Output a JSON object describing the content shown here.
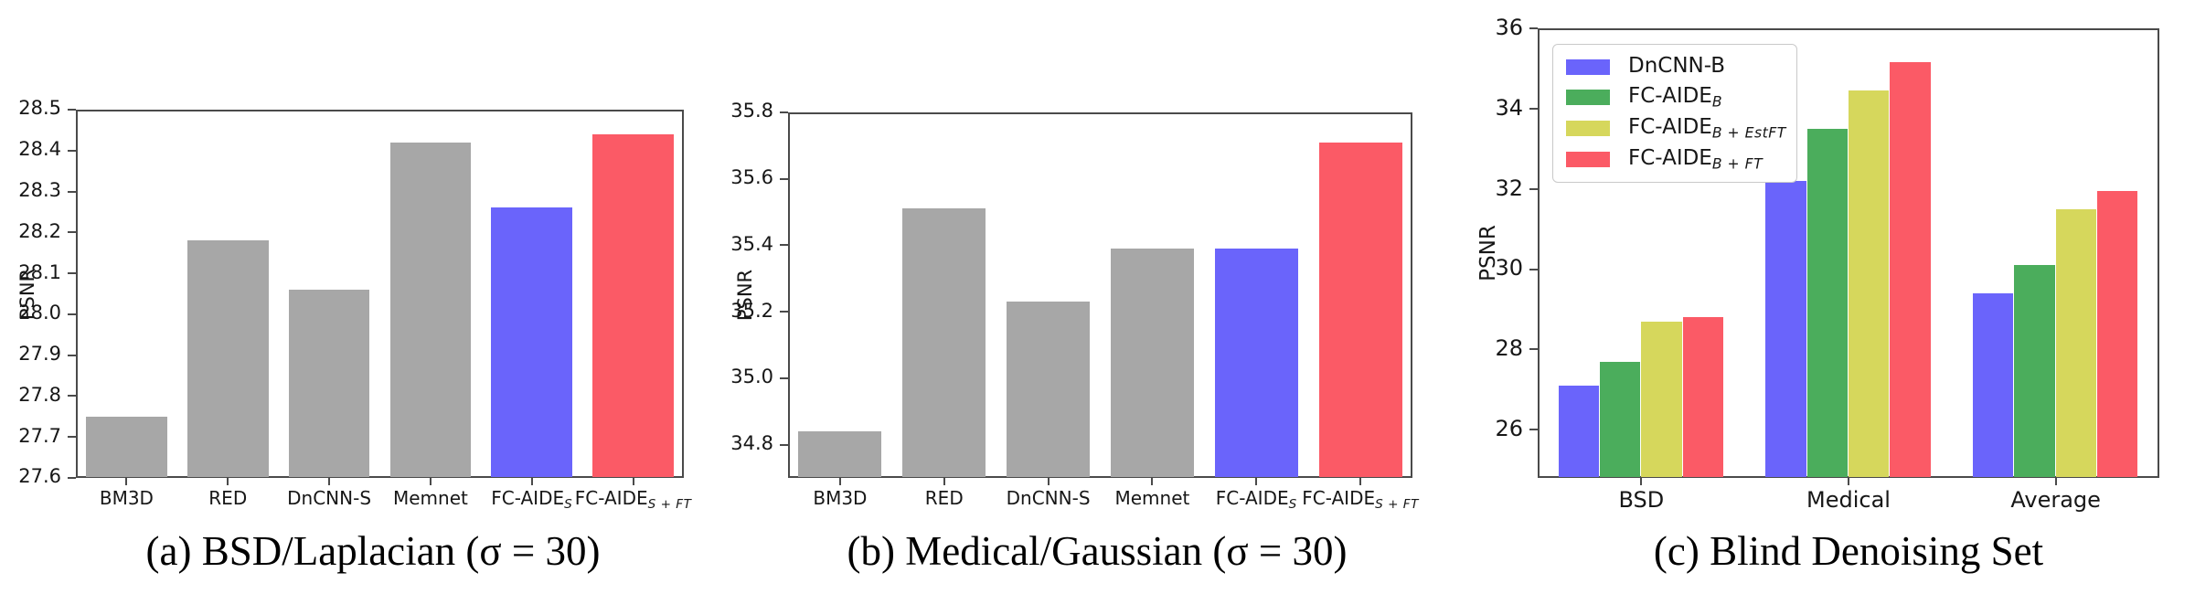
{
  "figure_title": "",
  "ui": {
    "background": "#ffffff",
    "axis_color": "#4a4a4a",
    "text_color": "#171717",
    "caption_color": "#000000"
  },
  "chart_data": [
    {
      "type": "bar",
      "caption": "(a) BSD/Laplacian (σ = 30)",
      "ylabel": "PSNR",
      "ylim": [
        27.6,
        28.5
      ],
      "yticks": [
        "27.6",
        "27.7",
        "27.8",
        "27.9",
        "28.0",
        "28.1",
        "28.2",
        "28.3",
        "28.4",
        "28.5"
      ],
      "categories": [
        "BM3D",
        "RED",
        "DnCNN-S",
        "Memnet",
        "FC-AIDE_{S}",
        "FC-AIDE_{S + FT}"
      ],
      "values": [
        27.75,
        28.18,
        28.06,
        28.42,
        28.26,
        28.44
      ],
      "colors": [
        "#a7a7a7",
        "#a7a7a7",
        "#a7a7a7",
        "#a7a7a7",
        "#6a64fb",
        "#fb5a66"
      ],
      "grid": false,
      "legend": null
    },
    {
      "type": "bar",
      "caption": "(b) Medical/Gaussian (σ = 30)",
      "ylabel": "PSNR",
      "ylim": [
        34.7,
        35.8
      ],
      "yticks": [
        "34.8",
        "35.0",
        "35.2",
        "35.4",
        "35.6",
        "35.8"
      ],
      "categories": [
        "BM3D",
        "RED",
        "DnCNN-S",
        "Memnet",
        "FC-AIDE_{S}",
        "FC-AIDE_{S + FT}"
      ],
      "values": [
        34.84,
        35.51,
        35.23,
        35.39,
        35.39,
        35.71
      ],
      "colors": [
        "#a7a7a7",
        "#a7a7a7",
        "#a7a7a7",
        "#a7a7a7",
        "#6a64fb",
        "#fb5a66"
      ],
      "grid": false,
      "legend": null
    },
    {
      "type": "bar",
      "caption": "(c) Blind Denoising Set",
      "ylabel": "PSNR",
      "ylim": [
        24.8,
        36
      ],
      "yticks": [
        "26",
        "28",
        "30",
        "32",
        "34",
        "36"
      ],
      "categories": [
        "BSD",
        "Medical",
        "Average"
      ],
      "series": [
        {
          "name": "DnCNN-B",
          "color": "#6a64fb",
          "values": [
            27.1,
            32.2,
            29.4
          ]
        },
        {
          "name": "FC-AIDE_{B}",
          "color": "#4bad5c",
          "values": [
            27.7,
            33.5,
            30.1
          ]
        },
        {
          "name": "FC-AIDE_{B + EstFT}",
          "color": "#d6d75c",
          "values": [
            28.7,
            34.45,
            31.5
          ]
        },
        {
          "name": "FC-AIDE_{B + FT}",
          "color": "#fb5a66",
          "values": [
            28.8,
            35.15,
            31.95
          ]
        }
      ],
      "legend_position": "upper left",
      "grid": false
    }
  ]
}
